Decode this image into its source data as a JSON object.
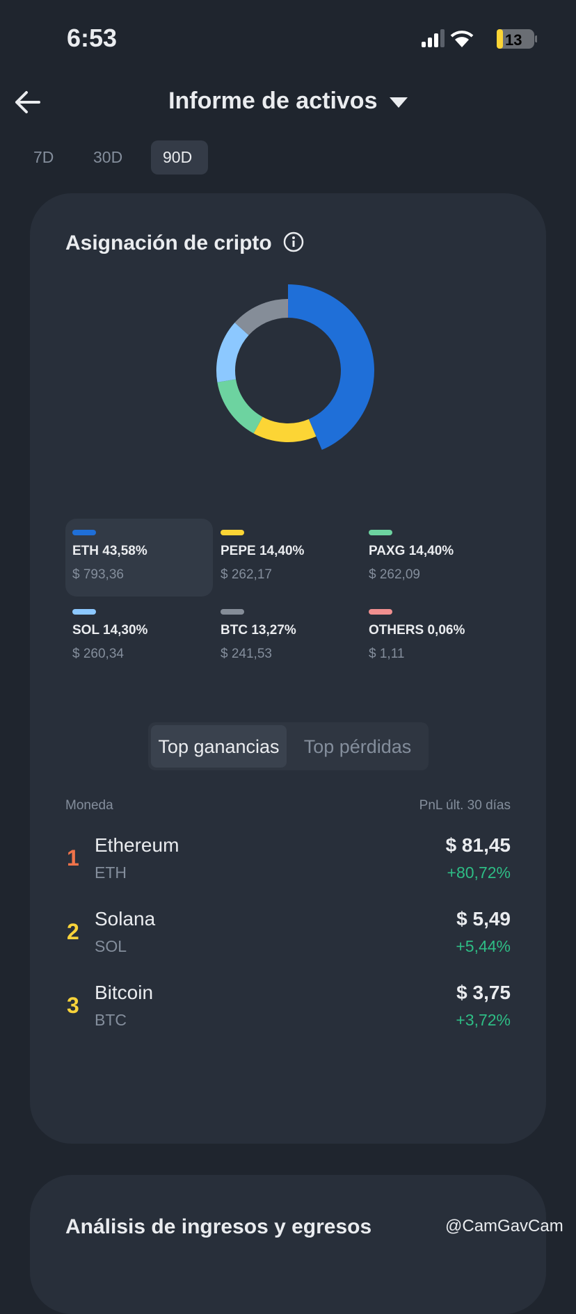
{
  "status_bar": {
    "time": "6:53",
    "battery": "13"
  },
  "header": {
    "title": "Informe de activos"
  },
  "period_tabs": [
    "7D",
    "30D",
    "90D"
  ],
  "allocation": {
    "title": "Asignación de cripto",
    "items": [
      {
        "name": "ETH",
        "value": 43.58,
        "value_label": "43,58%",
        "amount": "$ 793,36",
        "color": "#1f6fd8"
      },
      {
        "name": "PEPE",
        "value": 14.4,
        "value_label": "14,40%",
        "amount": "$ 262,17",
        "color": "#fcd535"
      },
      {
        "name": "PAXG",
        "value": 14.4,
        "value_label": "14,40%",
        "amount": "$ 262,09",
        "color": "#6dd3a0"
      },
      {
        "name": "SOL",
        "value": 14.3,
        "value_label": "14,30%",
        "amount": "$ 260,34",
        "color": "#8cc8ff"
      },
      {
        "name": "BTC",
        "value": 13.27,
        "value_label": "13,27%",
        "amount": "$ 241,53",
        "color": "#858d98"
      },
      {
        "name": "OTHERS",
        "value": 0.06,
        "value_label": "0,06%",
        "amount": "$ 1,11",
        "color": "#f08f8f"
      }
    ]
  },
  "ranking": {
    "tabs": [
      "Top ganancias",
      "Top pérdidas"
    ],
    "columns": [
      "Moneda",
      "PnL últ. 30 días"
    ],
    "rows": [
      {
        "rank": "1",
        "name": "Ethereum",
        "symbol": "ETH",
        "pnl": "$ 81,45",
        "change": "+80,72%"
      },
      {
        "rank": "2",
        "name": "Solana",
        "symbol": "SOL",
        "pnl": "$ 5,49",
        "change": "+5,44%"
      },
      {
        "rank": "3",
        "name": "Bitcoin",
        "symbol": "BTC",
        "pnl": "$ 3,75",
        "change": "+3,72%"
      }
    ]
  },
  "next_section": {
    "title": "Análisis de ingresos y egresos"
  },
  "watermark": "@CamGavCam"
}
